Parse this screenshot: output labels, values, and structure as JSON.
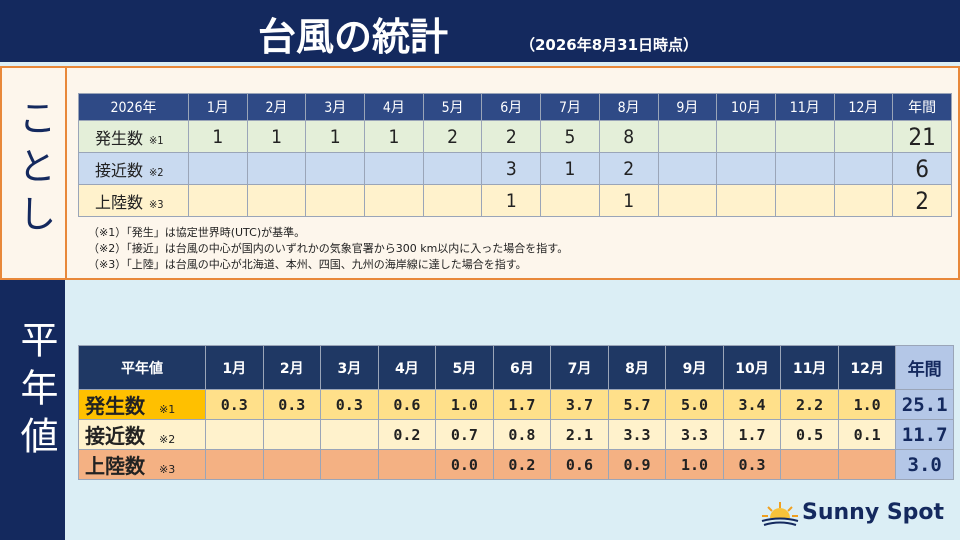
{
  "header": {
    "title": "台風の統計",
    "subtitle": "（2026年8月31日時点）"
  },
  "this_year": {
    "label": "ことし",
    "table": {
      "columns": [
        "2026年",
        "1月",
        "2月",
        "3月",
        "4月",
        "5月",
        "6月",
        "7月",
        "8月",
        "9月",
        "10月",
        "11月",
        "12月",
        "年間"
      ],
      "rows": [
        {
          "label": "発生数",
          "note": "※1",
          "cells": [
            "1",
            "1",
            "1",
            "1",
            "2",
            "2",
            "5",
            "8",
            null,
            null,
            null,
            null,
            "21"
          ]
        },
        {
          "label": "接近数",
          "note": "※2",
          "cells": [
            null,
            null,
            null,
            null,
            null,
            "3",
            "1",
            "2",
            null,
            null,
            null,
            null,
            "6"
          ]
        },
        {
          "label": "上陸数",
          "note": "※3",
          "cells": [
            null,
            null,
            null,
            null,
            null,
            "1",
            null,
            "1",
            null,
            null,
            null,
            null,
            "2"
          ]
        }
      ]
    },
    "notes": [
      "（※1）「発生」は協定世界時(UTC)が基準。",
      "（※2）「接近」は台風の中心が国内のいずれかの気象官署から300 km以内に入った場合を指す。",
      "（※3）「上陸」は台風の中心が北海道、本州、四国、九州の海岸線に達した場合を指す。"
    ]
  },
  "normal": {
    "label": "平年値",
    "table": {
      "columns": [
        "平年値",
        "1月",
        "2月",
        "3月",
        "4月",
        "5月",
        "6月",
        "7月",
        "8月",
        "9月",
        "10月",
        "11月",
        "12月",
        "年間"
      ],
      "rows": [
        {
          "label": "発生数",
          "note": "※1",
          "cells": [
            "0.3",
            "0.3",
            "0.3",
            "0.6",
            "1.0",
            "1.7",
            "3.7",
            "5.7",
            "5.0",
            "3.4",
            "2.2",
            "1.0",
            "25.1"
          ]
        },
        {
          "label": "接近数",
          "note": "※2",
          "cells": [
            null,
            null,
            null,
            "0.2",
            "0.7",
            "0.8",
            "2.1",
            "3.3",
            "3.3",
            "1.7",
            "0.5",
            "0.1",
            "11.7"
          ]
        },
        {
          "label": "上陸数",
          "note": "※3",
          "cells": [
            null,
            null,
            null,
            null,
            "0.0",
            "0.2",
            "0.6",
            "0.9",
            "1.0",
            "0.3",
            null,
            null,
            "3.0"
          ]
        }
      ]
    }
  },
  "logo": "Sunny Spot"
}
